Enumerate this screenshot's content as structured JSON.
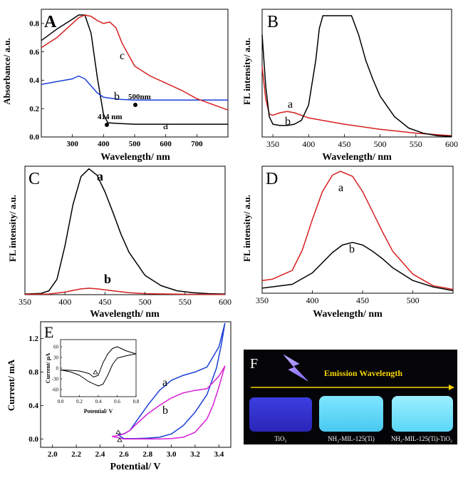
{
  "colors": {
    "a": "#000000",
    "b": "#d62020",
    "blue": "#1a3fd6",
    "magenta": "#d71fd7",
    "black": "#000000"
  },
  "chart_data": [
    {
      "id": "A",
      "type": "line",
      "panel_label": "A",
      "xlabel": "Wavelength/ nm",
      "ylabel": "Absorbance/ a.u.",
      "xlim": [
        200,
        800
      ],
      "ylim": [
        0,
        0.9
      ],
      "xticks": [
        "300",
        "400",
        "500",
        "600",
        "700"
      ],
      "yticks": [
        "0.0",
        "0.2",
        "0.4",
        "0.6",
        "0.8"
      ],
      "series": [
        {
          "name": "a",
          "color": "#000000",
          "x": [
            200,
            250,
            300,
            320,
            340,
            360,
            380,
            400,
            414,
            450,
            500,
            600,
            700,
            800
          ],
          "y": [
            0.68,
            0.76,
            0.83,
            0.86,
            0.86,
            0.73,
            0.42,
            0.16,
            0.1,
            0.095,
            0.09,
            0.09,
            0.09,
            0.09
          ]
        },
        {
          "name": "b",
          "color": "#1a3fd6",
          "x": [
            200,
            250,
            300,
            320,
            340,
            360,
            380,
            400,
            450,
            500,
            600,
            700,
            800
          ],
          "y": [
            0.37,
            0.39,
            0.41,
            0.43,
            0.41,
            0.36,
            0.31,
            0.28,
            0.265,
            0.26,
            0.26,
            0.26,
            0.26
          ]
        },
        {
          "name": "c",
          "color": "#d62020",
          "x": [
            200,
            250,
            300,
            320,
            340,
            360,
            380,
            400,
            420,
            440,
            460,
            500,
            550,
            600,
            650,
            700,
            750,
            800
          ],
          "y": [
            0.63,
            0.7,
            0.8,
            0.84,
            0.86,
            0.85,
            0.82,
            0.8,
            0.81,
            0.77,
            0.66,
            0.5,
            0.43,
            0.38,
            0.33,
            0.27,
            0.23,
            0.19
          ]
        }
      ],
      "labels": [
        "a",
        "b",
        "c"
      ],
      "annotations": [
        "414 nm",
        "500nm"
      ]
    },
    {
      "id": "B",
      "type": "line",
      "panel_label": "B",
      "xlabel": "Wavelength/ nm",
      "ylabel": "FL intensity/ a.u.",
      "xlim": [
        335,
        600
      ],
      "ylim": [
        0,
        1
      ],
      "xticks": [
        "350",
        "400",
        "450",
        "500",
        "550",
        "600"
      ],
      "series": [
        {
          "name": "a",
          "color": "#d62020",
          "x": [
            335,
            340,
            345,
            350,
            360,
            370,
            380,
            400,
            450,
            500,
            550,
            600
          ],
          "y": [
            0.55,
            0.3,
            0.18,
            0.17,
            0.19,
            0.2,
            0.19,
            0.15,
            0.1,
            0.06,
            0.03,
            0.01
          ]
        },
        {
          "name": "b",
          "color": "#000000",
          "x": [
            335,
            340,
            345,
            350,
            360,
            370,
            380,
            390,
            400,
            410,
            415,
            420,
            430,
            440,
            460,
            470,
            480,
            490,
            500,
            520,
            540,
            560,
            580,
            600
          ],
          "y": [
            0.8,
            0.4,
            0.16,
            0.1,
            0.09,
            0.09,
            0.1,
            0.13,
            0.25,
            0.6,
            0.85,
            0.95,
            0.95,
            0.95,
            0.95,
            0.8,
            0.6,
            0.45,
            0.32,
            0.16,
            0.07,
            0.03,
            0.01,
            0.005
          ]
        }
      ],
      "labels": [
        "a",
        "b"
      ]
    },
    {
      "id": "C",
      "type": "line",
      "panel_label": "C",
      "xlabel": "Wavelength/ nm",
      "ylabel": "FL intensity/ a.u.",
      "xlim": [
        350,
        600
      ],
      "ylim": [
        0,
        1
      ],
      "xticks": [
        "350",
        "400",
        "450",
        "500",
        "550",
        "600"
      ],
      "series": [
        {
          "name": "a",
          "color": "#000000",
          "x": [
            350,
            370,
            380,
            390,
            400,
            410,
            420,
            430,
            440,
            450,
            460,
            470,
            480,
            500,
            520,
            540,
            560,
            580,
            600
          ],
          "y": [
            0.005,
            0.01,
            0.03,
            0.12,
            0.38,
            0.7,
            0.92,
            0.98,
            0.93,
            0.8,
            0.64,
            0.47,
            0.33,
            0.15,
            0.07,
            0.03,
            0.015,
            0.008,
            0.005
          ]
        },
        {
          "name": "b",
          "color": "#d62020",
          "x": [
            350,
            380,
            400,
            420,
            430,
            440,
            460,
            480,
            500,
            550,
            600
          ],
          "y": [
            0.003,
            0.005,
            0.02,
            0.045,
            0.05,
            0.045,
            0.03,
            0.015,
            0.008,
            0.003,
            0.002
          ]
        }
      ],
      "labels": [
        "a",
        "b"
      ]
    },
    {
      "id": "D",
      "type": "line",
      "panel_label": "D",
      "xlabel": "Wavelength/ nm",
      "ylabel": "FL intensity/ a.u.",
      "xlim": [
        350,
        540
      ],
      "ylim": [
        0,
        1
      ],
      "xticks": [
        "350",
        "400",
        "450",
        "500"
      ],
      "series": [
        {
          "name": "a",
          "color": "#d62020",
          "x": [
            350,
            360,
            380,
            390,
            400,
            410,
            420,
            428,
            440,
            450,
            460,
            470,
            480,
            500,
            520,
            540
          ],
          "y": [
            0.1,
            0.11,
            0.18,
            0.34,
            0.58,
            0.8,
            0.93,
            0.96,
            0.92,
            0.8,
            0.64,
            0.48,
            0.33,
            0.15,
            0.06,
            0.03
          ]
        },
        {
          "name": "b",
          "color": "#000000",
          "x": [
            350,
            360,
            380,
            400,
            420,
            430,
            440,
            450,
            460,
            470,
            480,
            500,
            520,
            540
          ],
          "y": [
            0.04,
            0.05,
            0.07,
            0.16,
            0.32,
            0.38,
            0.4,
            0.38,
            0.33,
            0.27,
            0.2,
            0.1,
            0.05,
            0.02
          ]
        }
      ],
      "labels": [
        "a",
        "b"
      ]
    },
    {
      "id": "E",
      "type": "line",
      "panel_label": "E",
      "xlabel": "Potential/ V",
      "ylabel": "Current/ mA",
      "xlim": [
        1.9,
        3.5
      ],
      "ylim": [
        -0.1,
        1.4
      ],
      "xticks": [
        "2.0",
        "2.2",
        "2.4",
        "2.6",
        "2.8",
        "3.0",
        "3.2",
        "3.4"
      ],
      "yticks": [
        "0.0",
        "0.4",
        "0.8",
        "1.2"
      ],
      "series": [
        {
          "name": "a",
          "color": "#1a3fd6",
          "x": [
            2.55,
            2.6,
            2.65,
            2.7,
            2.8,
            2.9,
            3.0,
            3.1,
            3.2,
            3.3,
            3.4,
            3.45,
            3.42,
            3.38,
            3.3,
            3.2,
            3.1,
            3.0,
            2.9,
            2.8,
            2.7,
            2.6,
            2.55
          ],
          "y": [
            0.05,
            0.06,
            0.1,
            0.2,
            0.4,
            0.58,
            0.7,
            0.76,
            0.8,
            0.86,
            1.1,
            1.38,
            1.12,
            0.85,
            0.53,
            0.32,
            0.16,
            0.06,
            0.02,
            0.01,
            0.005,
            0.005,
            0.05
          ]
        },
        {
          "name": "b",
          "color": "#d71fd7",
          "x": [
            2.5,
            2.55,
            2.6,
            2.65,
            2.7,
            2.8,
            2.9,
            3.0,
            3.1,
            3.2,
            3.3,
            3.4,
            3.45,
            3.4,
            3.35,
            3.3,
            3.2,
            3.1,
            3.0,
            2.9,
            2.8,
            2.7,
            2.6,
            2.5
          ],
          "y": [
            0.03,
            0.04,
            0.06,
            0.1,
            0.17,
            0.3,
            0.4,
            0.49,
            0.55,
            0.58,
            0.6,
            0.75,
            0.87,
            0.62,
            0.4,
            0.24,
            0.08,
            0.02,
            0.005,
            0.0,
            0.0,
            0.0,
            0.0,
            0.03
          ]
        }
      ],
      "labels": [
        "a",
        "b"
      ],
      "inset": {
        "xlabel": "Potential/ V",
        "ylabel": "Current/ μA",
        "xlim": [
          0.0,
          0.8
        ],
        "ylim": [
          -80,
          80
        ],
        "xticks": [
          "0.0",
          "0.2",
          "0.4",
          "0.6",
          "0.8"
        ],
        "yticks": [
          "-60",
          "-30",
          "0",
          "30",
          "60"
        ],
        "series": [
          {
            "name": "cv",
            "color": "#000000",
            "x": [
              0.0,
              0.1,
              0.2,
              0.3,
              0.35,
              0.4,
              0.45,
              0.5,
              0.55,
              0.6,
              0.7,
              0.8,
              0.7,
              0.6,
              0.55,
              0.5,
              0.45,
              0.4,
              0.3,
              0.2,
              0.1,
              0.0
            ],
            "y": [
              -5,
              -6,
              -8,
              -15,
              -25,
              -20,
              15,
              40,
              55,
              60,
              48,
              40,
              35,
              28,
              10,
              -20,
              -45,
              -50,
              -38,
              -20,
              -10,
              -5
            ]
          }
        ]
      }
    }
  ],
  "panel_F": {
    "panel_label": "F",
    "header": "Emission Wavelength",
    "samples": [
      "TiO₂",
      "NH₂-MIL-125(Ti)",
      "NH₂-MIL-125(Ti)-TiO₂"
    ]
  }
}
